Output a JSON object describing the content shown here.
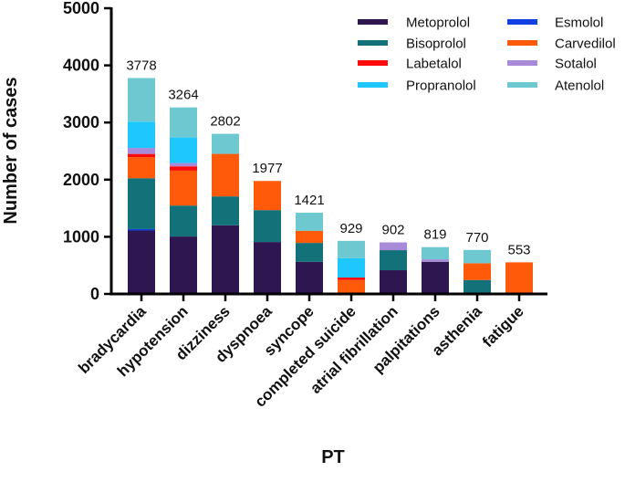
{
  "chart_data": {
    "type": "bar",
    "stacked": true,
    "title": "",
    "xlabel": "PT",
    "ylabel": "Number of cases",
    "ylim": [
      0,
      5000
    ],
    "yticks": [
      0,
      1000,
      2000,
      3000,
      4000,
      5000
    ],
    "grid": false,
    "legend_placement": "top-right",
    "categories": [
      "bradycardia",
      "hypotension",
      "dizziness",
      "dyspnoea",
      "syncope",
      "completed suicide",
      "atrial fibrillation",
      "palpitations",
      "asthenia",
      "fatigue"
    ],
    "totals": [
      3778,
      3264,
      2802,
      1977,
      1421,
      929,
      902,
      819,
      770,
      553
    ],
    "series": [
      {
        "name": "Metoprolol",
        "color": "#2e1650",
        "values": [
          1110,
          1005,
          1201,
          909,
          563,
          0,
          415,
          563,
          0,
          0
        ]
      },
      {
        "name": "Esmolol",
        "color": "#1040e0",
        "values": [
          25,
          0,
          0,
          0,
          0,
          0,
          0,
          0,
          0,
          0
        ]
      },
      {
        "name": "Bisoprolol",
        "color": "#13717a",
        "values": [
          890,
          542,
          506,
          558,
          330,
          0,
          351,
          0,
          244,
          0
        ]
      },
      {
        "name": "Carvedilol",
        "color": "#ff5a0a",
        "values": [
          370,
          611,
          744,
          510,
          212,
          244,
          0,
          0,
          293,
          553
        ]
      },
      {
        "name": "Labetalol",
        "color": "#ff0a0a",
        "values": [
          55,
          75,
          0,
          0,
          0,
          43,
          0,
          0,
          0,
          0
        ]
      },
      {
        "name": "Sotalol",
        "color": "#a88ad8",
        "values": [
          105,
          59,
          0,
          0,
          0,
          0,
          136,
          43,
          0,
          0
        ]
      },
      {
        "name": "Propranolol",
        "color": "#1ec8ff",
        "values": [
          460,
          446,
          0,
          0,
          0,
          340,
          0,
          0,
          0,
          0
        ]
      },
      {
        "name": "Atenolol",
        "color": "#6ec8d0",
        "values": [
          763,
          526,
          351,
          0,
          316,
          302,
          0,
          213,
          233,
          0
        ]
      }
    ],
    "legend_order": [
      "Metoprolol",
      "Bisoprolol",
      "Labetalol",
      "Propranolol",
      "Esmolol",
      "Carvedilol",
      "Sotalol",
      "Atenolol"
    ]
  }
}
